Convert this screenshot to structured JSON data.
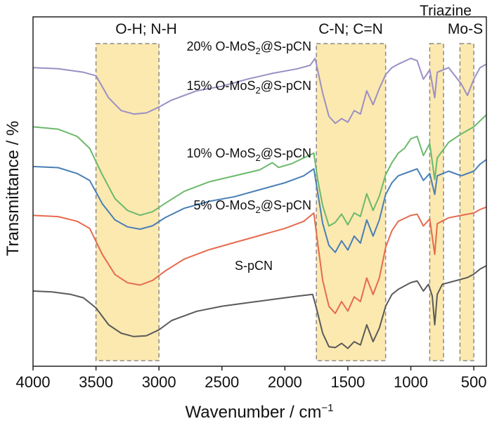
{
  "chart_data": {
    "type": "line",
    "xlabel": "Wavenumber / cm",
    "xlabel_sup": "−1",
    "ylabel": "Transmittance / %",
    "xlim": [
      4000,
      400
    ],
    "x_reversed": true,
    "y_ticks_shown": false,
    "grid": false,
    "xticks": [
      {
        "value": 4000,
        "label": "4000"
      },
      {
        "value": 3500,
        "label": "3500"
      },
      {
        "value": 3000,
        "label": "3000"
      },
      {
        "value": 2500,
        "label": "2500"
      },
      {
        "value": 2000,
        "label": "2000"
      },
      {
        "value": 1500,
        "label": "1500"
      },
      {
        "value": 1000,
        "label": "1000"
      },
      {
        "value": 500,
        "label": "500"
      }
    ],
    "bands": [
      {
        "label": "O-H; N-H",
        "from": 3500,
        "to": 3000
      },
      {
        "label": "C-N; C=N",
        "from": 1750,
        "to": 1200
      },
      {
        "label": "Triazine",
        "from": 850,
        "to": 740
      },
      {
        "label": "Mo-S",
        "from": 610,
        "to": 500
      }
    ],
    "series": [
      {
        "name_pre": "20% O-MoS",
        "name_sub": "2",
        "name_post": "@S-pCN",
        "color": "#9b8fc4",
        "offset": 4,
        "points": [
          [
            4000,
            0.92
          ],
          [
            3800,
            0.91
          ],
          [
            3600,
            0.88
          ],
          [
            3500,
            0.85
          ],
          [
            3400,
            0.66
          ],
          [
            3300,
            0.55
          ],
          [
            3200,
            0.52
          ],
          [
            3100,
            0.53
          ],
          [
            3000,
            0.58
          ],
          [
            2900,
            0.64
          ],
          [
            2700,
            0.72
          ],
          [
            2500,
            0.76
          ],
          [
            2300,
            0.82
          ],
          [
            2100,
            0.87
          ],
          [
            1900,
            0.91
          ],
          [
            1800,
            0.94
          ],
          [
            1760,
            1.0
          ],
          [
            1700,
            0.7
          ],
          [
            1650,
            0.5
          ],
          [
            1600,
            0.44
          ],
          [
            1550,
            0.48
          ],
          [
            1500,
            0.45
          ],
          [
            1450,
            0.55
          ],
          [
            1400,
            0.52
          ],
          [
            1350,
            0.72
          ],
          [
            1300,
            0.6
          ],
          [
            1250,
            0.74
          ],
          [
            1200,
            0.86
          ],
          [
            1150,
            0.92
          ],
          [
            1100,
            0.95
          ],
          [
            1000,
            1.0
          ],
          [
            950,
            0.98
          ],
          [
            900,
            0.82
          ],
          [
            850,
            0.9
          ],
          [
            810,
            0.66
          ],
          [
            790,
            0.88
          ],
          [
            700,
            0.92
          ],
          [
            600,
            0.78
          ],
          [
            550,
            0.68
          ],
          [
            500,
            0.82
          ],
          [
            450,
            0.92
          ],
          [
            400,
            0.95
          ]
        ]
      },
      {
        "name_pre": "15% O-MoS",
        "name_sub": "2",
        "name_post": "@S-pCN",
        "color": "#6bb96b",
        "offset": 3,
        "points": [
          [
            4000,
            0.88
          ],
          [
            3800,
            0.86
          ],
          [
            3650,
            0.8
          ],
          [
            3550,
            0.7
          ],
          [
            3450,
            0.48
          ],
          [
            3350,
            0.28
          ],
          [
            3250,
            0.18
          ],
          [
            3150,
            0.14
          ],
          [
            3050,
            0.17
          ],
          [
            2950,
            0.24
          ],
          [
            2800,
            0.34
          ],
          [
            2600,
            0.42
          ],
          [
            2400,
            0.47
          ],
          [
            2200,
            0.52
          ],
          [
            2100,
            0.58
          ],
          [
            2050,
            0.54
          ],
          [
            1950,
            0.57
          ],
          [
            1850,
            0.62
          ],
          [
            1770,
            0.66
          ],
          [
            1740,
            0.44
          ],
          [
            1700,
            0.22
          ],
          [
            1650,
            0.05
          ],
          [
            1600,
            0.08
          ],
          [
            1550,
            0.15
          ],
          [
            1500,
            0.06
          ],
          [
            1450,
            0.16
          ],
          [
            1400,
            0.13
          ],
          [
            1350,
            0.32
          ],
          [
            1300,
            0.18
          ],
          [
            1250,
            0.3
          ],
          [
            1200,
            0.48
          ],
          [
            1150,
            0.58
          ],
          [
            1100,
            0.66
          ],
          [
            1050,
            0.7
          ],
          [
            1000,
            0.78
          ],
          [
            950,
            0.8
          ],
          [
            900,
            0.64
          ],
          [
            850,
            0.74
          ],
          [
            810,
            0.44
          ],
          [
            790,
            0.62
          ],
          [
            700,
            0.75
          ],
          [
            600,
            0.82
          ],
          [
            500,
            0.88
          ],
          [
            450,
            0.93
          ],
          [
            400,
            0.98
          ]
        ]
      },
      {
        "name_pre": "10% O-MoS",
        "name_sub": "2",
        "name_post": "@S-pCN",
        "color": "#4a7fb5",
        "offset": 2,
        "points": [
          [
            4000,
            0.94
          ],
          [
            3800,
            0.93
          ],
          [
            3650,
            0.88
          ],
          [
            3550,
            0.82
          ],
          [
            3450,
            0.62
          ],
          [
            3350,
            0.48
          ],
          [
            3250,
            0.42
          ],
          [
            3150,
            0.4
          ],
          [
            3050,
            0.43
          ],
          [
            2950,
            0.5
          ],
          [
            2800,
            0.58
          ],
          [
            2600,
            0.64
          ],
          [
            2400,
            0.68
          ],
          [
            2200,
            0.74
          ],
          [
            2000,
            0.8
          ],
          [
            1850,
            0.86
          ],
          [
            1770,
            0.92
          ],
          [
            1740,
            0.72
          ],
          [
            1700,
            0.45
          ],
          [
            1650,
            0.26
          ],
          [
            1600,
            0.2
          ],
          [
            1550,
            0.3
          ],
          [
            1500,
            0.22
          ],
          [
            1450,
            0.34
          ],
          [
            1400,
            0.28
          ],
          [
            1350,
            0.48
          ],
          [
            1300,
            0.34
          ],
          [
            1250,
            0.48
          ],
          [
            1200,
            0.7
          ],
          [
            1150,
            0.8
          ],
          [
            1100,
            0.86
          ],
          [
            1000,
            0.9
          ],
          [
            950,
            0.92
          ],
          [
            900,
            0.82
          ],
          [
            850,
            0.88
          ],
          [
            810,
            0.7
          ],
          [
            790,
            0.86
          ],
          [
            700,
            0.9
          ],
          [
            600,
            0.86
          ],
          [
            500,
            0.9
          ],
          [
            450,
            0.96
          ],
          [
            400,
            1.0
          ]
        ]
      },
      {
        "name_pre": "5% O-MoS",
        "name_sub": "2",
        "name_post": "@S-pCN",
        "color": "#e66a4e",
        "offset": 1,
        "points": [
          [
            4000,
            0.95
          ],
          [
            3800,
            0.94
          ],
          [
            3650,
            0.9
          ],
          [
            3550,
            0.84
          ],
          [
            3450,
            0.62
          ],
          [
            3350,
            0.45
          ],
          [
            3250,
            0.38
          ],
          [
            3150,
            0.36
          ],
          [
            3050,
            0.4
          ],
          [
            2950,
            0.48
          ],
          [
            2800,
            0.58
          ],
          [
            2600,
            0.66
          ],
          [
            2400,
            0.72
          ],
          [
            2200,
            0.78
          ],
          [
            2000,
            0.84
          ],
          [
            1850,
            0.9
          ],
          [
            1770,
            0.97
          ],
          [
            1740,
            0.72
          ],
          [
            1700,
            0.4
          ],
          [
            1650,
            0.18
          ],
          [
            1600,
            0.12
          ],
          [
            1550,
            0.22
          ],
          [
            1500,
            0.14
          ],
          [
            1450,
            0.26
          ],
          [
            1400,
            0.22
          ],
          [
            1350,
            0.42
          ],
          [
            1300,
            0.28
          ],
          [
            1250,
            0.42
          ],
          [
            1200,
            0.68
          ],
          [
            1150,
            0.82
          ],
          [
            1100,
            0.9
          ],
          [
            1000,
            0.95
          ],
          [
            950,
            0.96
          ],
          [
            900,
            0.86
          ],
          [
            850,
            0.92
          ],
          [
            810,
            0.62
          ],
          [
            790,
            0.88
          ],
          [
            700,
            0.93
          ],
          [
            600,
            0.95
          ],
          [
            500,
            0.97
          ],
          [
            450,
            1.0
          ],
          [
            400,
            1.02
          ]
        ]
      },
      {
        "name": "S-pCN",
        "color": "#5a5a5a",
        "offset": 0,
        "points": [
          [
            4000,
            0.7
          ],
          [
            3850,
            0.69
          ],
          [
            3700,
            0.66
          ],
          [
            3600,
            0.62
          ],
          [
            3500,
            0.5
          ],
          [
            3400,
            0.3
          ],
          [
            3300,
            0.2
          ],
          [
            3200,
            0.16
          ],
          [
            3100,
            0.17
          ],
          [
            3000,
            0.24
          ],
          [
            2900,
            0.35
          ],
          [
            2700,
            0.46
          ],
          [
            2500,
            0.52
          ],
          [
            2300,
            0.56
          ],
          [
            2100,
            0.6
          ],
          [
            1900,
            0.64
          ],
          [
            1780,
            0.66
          ],
          [
            1750,
            0.5
          ],
          [
            1700,
            0.2
          ],
          [
            1650,
            0.04
          ],
          [
            1600,
            0.03
          ],
          [
            1550,
            0.08
          ],
          [
            1500,
            0.02
          ],
          [
            1450,
            0.1
          ],
          [
            1400,
            0.06
          ],
          [
            1350,
            0.3
          ],
          [
            1300,
            0.1
          ],
          [
            1250,
            0.26
          ],
          [
            1200,
            0.52
          ],
          [
            1150,
            0.66
          ],
          [
            1100,
            0.72
          ],
          [
            1050,
            0.76
          ],
          [
            1000,
            0.8
          ],
          [
            950,
            0.82
          ],
          [
            900,
            0.7
          ],
          [
            860,
            0.78
          ],
          [
            830,
            0.64
          ],
          [
            810,
            0.3
          ],
          [
            790,
            0.66
          ],
          [
            750,
            0.78
          ],
          [
            700,
            0.8
          ],
          [
            600,
            0.84
          ],
          [
            550,
            0.86
          ],
          [
            500,
            0.9
          ],
          [
            450,
            0.96
          ],
          [
            400,
            1.0
          ]
        ]
      }
    ]
  }
}
